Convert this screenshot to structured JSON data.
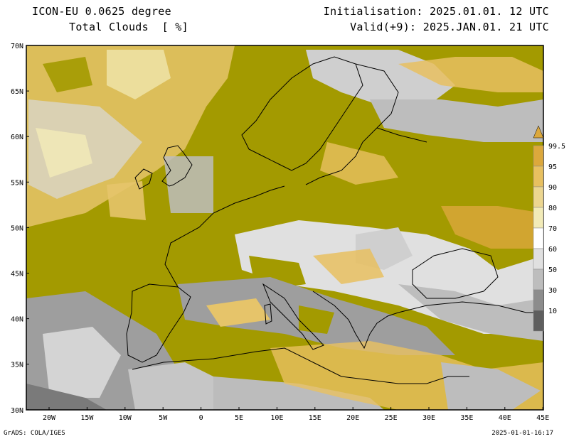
{
  "header": {
    "model": "ICON-EU 0.0625 degree",
    "field": "Total Clouds  [ %]",
    "init": "Initialisation: 2025.01.01. 12 UTC",
    "valid": "Valid(+9): 2025.JAN.01. 21 UTC"
  },
  "axes": {
    "lat_labels": [
      "70N",
      "65N",
      "60N",
      "55N",
      "50N",
      "45N",
      "40N",
      "35N",
      "30N"
    ],
    "lon_labels": [
      "20W",
      "15W",
      "10W",
      "5W",
      "0",
      "5E",
      "10E",
      "15E",
      "20E",
      "25E",
      "30E",
      "35E",
      "40E",
      "45E"
    ]
  },
  "colorbar": {
    "labels": [
      "99.5",
      "95",
      "90",
      "80",
      "70",
      "60",
      "50",
      "30",
      "10"
    ],
    "colors": [
      "#dca83c",
      "#e8c060",
      "#ecd690",
      "#f2ebb8",
      "#ffffff",
      "#e0e0e0",
      "#bdbdbd",
      "#8c8c8c",
      "#5e5e5e"
    ]
  },
  "colors": {
    "overcast": "#a39a00",
    "land_clear": "#ffffff",
    "coast": "#000000"
  },
  "footer": {
    "left": "GrADS: COLA/IGES",
    "right": "2025-01-01-16:17"
  }
}
